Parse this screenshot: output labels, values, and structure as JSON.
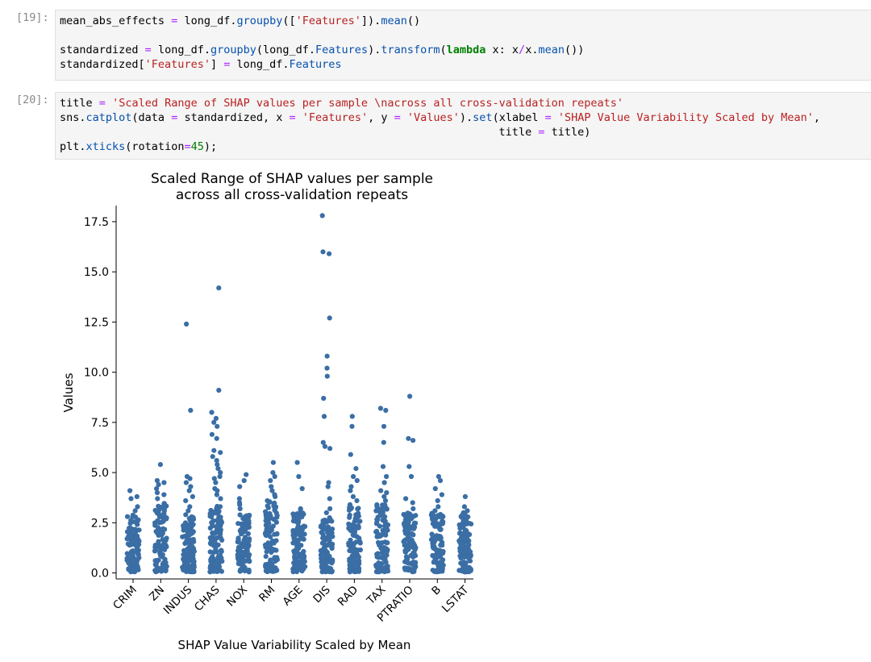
{
  "cells": [
    {
      "prompt": "[19]:",
      "lines": [
        [
          [
            "name",
            "mean_abs_effects "
          ],
          [
            "op",
            "="
          ],
          [
            "name",
            " long_df."
          ],
          [
            "fn",
            "groupby"
          ],
          [
            "name",
            "(["
          ],
          [
            "str",
            "'Features'"
          ],
          [
            "name",
            "])."
          ],
          [
            "fn",
            "mean"
          ],
          [
            "name",
            "()"
          ]
        ],
        [
          [
            "name",
            ""
          ]
        ],
        [
          [
            "name",
            "standardized "
          ],
          [
            "op",
            "="
          ],
          [
            "name",
            " long_df."
          ],
          [
            "fn",
            "groupby"
          ],
          [
            "name",
            "(long_df."
          ],
          [
            "fn",
            "Features"
          ],
          [
            "name",
            ")."
          ],
          [
            "fn",
            "transform"
          ],
          [
            "name",
            "("
          ],
          [
            "kw",
            "lambda"
          ],
          [
            "name",
            " x: x"
          ],
          [
            "op",
            "/"
          ],
          [
            "name",
            "x."
          ],
          [
            "fn",
            "mean"
          ],
          [
            "name",
            "())"
          ]
        ],
        [
          [
            "name",
            "standardized["
          ],
          [
            "str",
            "'Features'"
          ],
          [
            "name",
            "] "
          ],
          [
            "op",
            "="
          ],
          [
            "name",
            " long_df."
          ],
          [
            "fn",
            "Features"
          ]
        ]
      ]
    },
    {
      "prompt": "[20]:",
      "lines": [
        [
          [
            "name",
            "title "
          ],
          [
            "op",
            "="
          ],
          [
            "name",
            " "
          ],
          [
            "str",
            "'Scaled Range of SHAP values per sample \\nacross all cross-validation repeats'"
          ]
        ],
        [
          [
            "name",
            "sns."
          ],
          [
            "fn",
            "catplot"
          ],
          [
            "name",
            "(data "
          ],
          [
            "op",
            "="
          ],
          [
            "name",
            " standardized, x "
          ],
          [
            "op",
            "="
          ],
          [
            "name",
            " "
          ],
          [
            "str",
            "'Features'"
          ],
          [
            "name",
            ", y "
          ],
          [
            "op",
            "="
          ],
          [
            "name",
            " "
          ],
          [
            "str",
            "'Values'"
          ],
          [
            "name",
            ")."
          ],
          [
            "fn",
            "set"
          ],
          [
            "name",
            "(xlabel "
          ],
          [
            "op",
            "="
          ],
          [
            "name",
            " "
          ],
          [
            "str",
            "'SHAP Value Variability Scaled by Mean'"
          ],
          [
            "name",
            ","
          ]
        ],
        [
          [
            "name",
            "                                                                   title "
          ],
          [
            "op",
            "="
          ],
          [
            "name",
            " title)"
          ]
        ],
        [
          [
            "name",
            "plt."
          ],
          [
            "fn",
            "xticks"
          ],
          [
            "name",
            "(rotation"
          ],
          [
            "op",
            "="
          ],
          [
            "num",
            "45"
          ],
          [
            "name",
            ");"
          ]
        ]
      ]
    }
  ],
  "chart_data": {
    "type": "scatter",
    "title": [
      "Scaled Range of SHAP values per sample",
      "across all cross-validation repeats"
    ],
    "xlabel": "SHAP Value Variability Scaled by Mean",
    "ylabel": "Values",
    "categories": [
      "CRIM",
      "ZN",
      "INDUS",
      "CHAS",
      "NOX",
      "RM",
      "AGE",
      "DIS",
      "RAD",
      "TAX",
      "PTRATIO",
      "B",
      "LSTAT"
    ],
    "yticks": [
      0.0,
      2.5,
      5.0,
      7.5,
      10.0,
      12.5,
      15.0,
      17.5
    ],
    "ytick_labels": [
      "0.0",
      "2.5",
      "5.0",
      "7.5",
      "10.0",
      "12.5",
      "15.0",
      "17.5"
    ],
    "ylim": [
      -0.3,
      18.3
    ],
    "color": "#3a6ea5",
    "series": [
      {
        "category": "CRIM",
        "max": 4.1,
        "bulk_max": 2.9,
        "outliers": [
          4.1,
          3.8,
          3.7,
          3.3,
          3.1
        ]
      },
      {
        "category": "ZN",
        "max": 5.4,
        "bulk_max": 3.5,
        "outliers": [
          5.4,
          4.6,
          4.5,
          4.4,
          4.2,
          4.0,
          3.9,
          3.7
        ]
      },
      {
        "category": "INDUS",
        "max": 12.4,
        "bulk_max": 2.8,
        "outliers": [
          12.4,
          8.1,
          4.8,
          4.7,
          4.5,
          4.3,
          4.1,
          3.8,
          3.6,
          3.3,
          3.1,
          2.9
        ]
      },
      {
        "category": "CHAS",
        "max": 14.2,
        "bulk_max": 3.5,
        "outliers": [
          14.2,
          9.1,
          8.0,
          7.7,
          7.5,
          7.3,
          6.9,
          6.7,
          6.1,
          6.0,
          5.8,
          5.6,
          5.4,
          5.2,
          5.0,
          4.8,
          4.7,
          4.5,
          4.2,
          4.1,
          3.9,
          3.7
        ]
      },
      {
        "category": "NOX",
        "max": 4.9,
        "bulk_max": 3.0,
        "outliers": [
          4.9,
          4.6,
          4.3,
          3.7,
          3.5,
          3.4,
          3.2
        ]
      },
      {
        "category": "RM",
        "max": 5.5,
        "bulk_max": 3.6,
        "outliers": [
          5.5,
          5.0,
          4.8,
          4.6,
          4.3,
          4.1,
          3.9,
          3.8
        ]
      },
      {
        "category": "AGE",
        "max": 5.5,
        "bulk_max": 3.0,
        "outliers": [
          5.5,
          4.8,
          4.2,
          3.2,
          3.1
        ]
      },
      {
        "category": "DIS",
        "max": 17.8,
        "bulk_max": 2.8,
        "outliers": [
          17.8,
          16.0,
          15.9,
          12.7,
          10.8,
          10.2,
          9.8,
          8.7,
          7.8,
          6.5,
          6.3,
          6.2,
          4.5,
          4.3,
          3.7,
          3.2,
          3.0
        ]
      },
      {
        "category": "RAD",
        "max": 7.8,
        "bulk_max": 3.3,
        "outliers": [
          7.8,
          7.3,
          5.9,
          5.2,
          4.8,
          4.6,
          4.3,
          4.1,
          3.8,
          3.6,
          3.4
        ]
      },
      {
        "category": "TAX",
        "max": 8.2,
        "bulk_max": 3.4,
        "outliers": [
          8.2,
          8.1,
          7.3,
          6.5,
          5.3,
          4.8,
          4.5,
          4.1,
          4.0,
          3.8,
          3.6
        ]
      },
      {
        "category": "PTRATIO",
        "max": 8.8,
        "bulk_max": 3.0,
        "outliers": [
          8.8,
          6.7,
          6.6,
          5.3,
          4.8,
          3.7,
          3.5,
          3.2
        ]
      },
      {
        "category": "B",
        "max": 4.8,
        "bulk_max": 3.0,
        "outliers": [
          4.8,
          4.6,
          4.2,
          3.9,
          3.6,
          3.3,
          3.1
        ]
      },
      {
        "category": "LSTAT",
        "max": 3.8,
        "bulk_max": 2.9,
        "outliers": [
          3.8,
          3.3,
          3.1,
          3.0
        ]
      }
    ]
  }
}
